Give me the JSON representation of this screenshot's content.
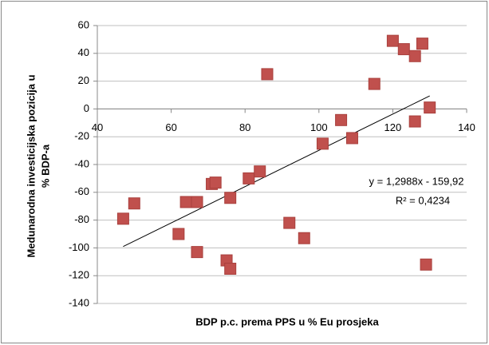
{
  "chart_data": {
    "type": "scatter",
    "xlabel": "BDP p.c. prema PPS u % Eu prosjeka",
    "ylabel": [
      "Medunarodna investicijska pozicija u",
      "% BDP-a"
    ],
    "x": [
      47,
      50,
      62,
      64,
      67,
      67,
      71,
      72,
      75,
      76,
      76,
      81,
      84,
      86,
      92,
      96,
      101,
      106,
      109,
      115,
      120,
      123,
      126,
      126,
      128,
      129,
      130
    ],
    "values": [
      -79,
      -68,
      -90,
      -67,
      -67,
      -103,
      -54,
      -53,
      -109,
      -115,
      -64,
      -50,
      -45,
      25,
      -82,
      -93,
      -25,
      -8,
      -21,
      18,
      49,
      43,
      38,
      -9,
      47,
      -112,
      1
    ],
    "color": "#c0504d",
    "xlim": [
      40,
      140
    ],
    "xticks": [
      40,
      60,
      80,
      100,
      120,
      140
    ],
    "ylim": [
      -140,
      60
    ],
    "yticks": [
      -140,
      -120,
      -100,
      -80,
      -60,
      -40,
      -20,
      0,
      20,
      40,
      60
    ],
    "grid": true,
    "trendline": {
      "equation": "y = 1,2988x - 159,92",
      "r2": "R² = 0,4234"
    }
  }
}
